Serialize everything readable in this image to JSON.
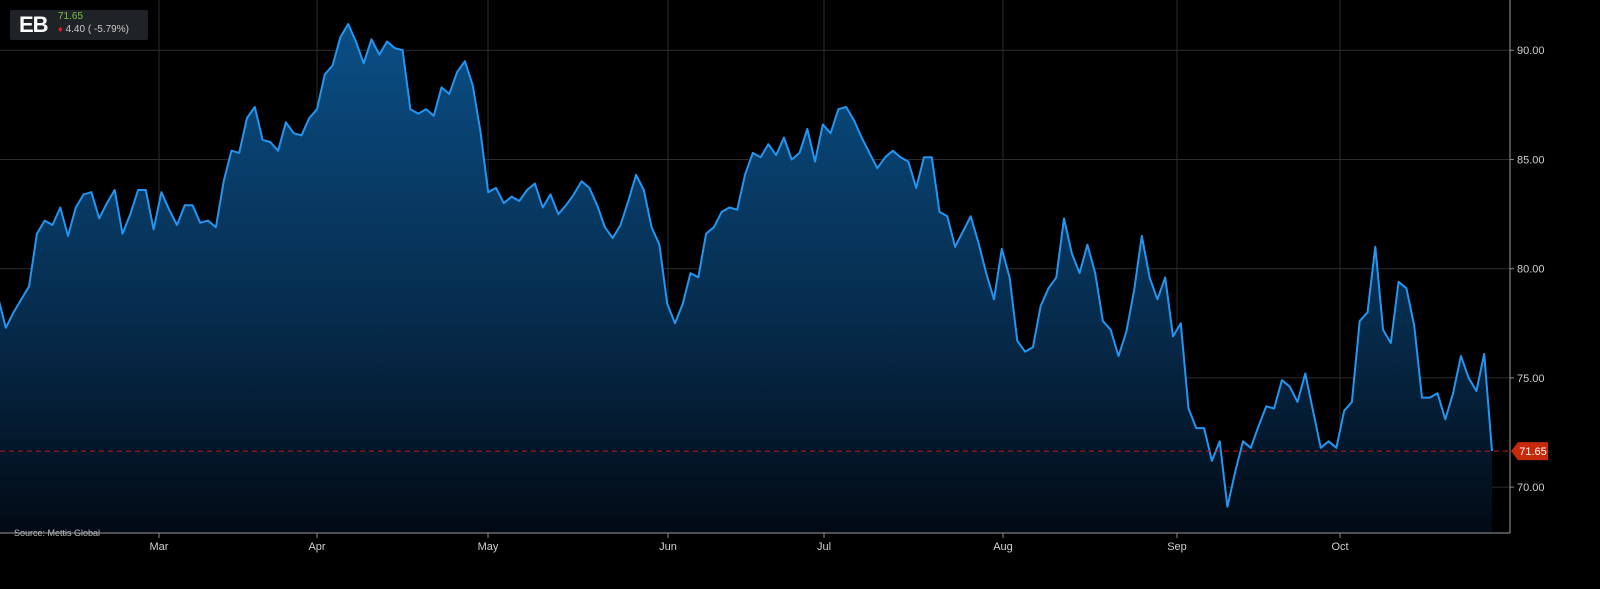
{
  "ticker": {
    "symbol": "EB",
    "price": "71.65",
    "change": "4.40 ( -5.79%)"
  },
  "source": "Source: Mettis Global",
  "colors": {
    "line": "#2196f3",
    "area_top": "#0a4f86",
    "last_price_marker": "#c62a0a",
    "last_price_line": "#b71c1c",
    "price_up_text": "#7cc242"
  },
  "chart_data": {
    "type": "area",
    "title": "",
    "xlabel": "",
    "ylabel": "",
    "ylim": [
      67.9,
      92.3
    ],
    "y_ticks": [
      90,
      85,
      80,
      75,
      70
    ],
    "y_tick_labels": [
      "90.00",
      "85.00",
      "80.00",
      "75.00",
      "70.00"
    ],
    "x_tick_labels": [
      "Mar",
      "Apr",
      "May",
      "Jun",
      "Jul",
      "Aug",
      "Sep",
      "Oct"
    ],
    "last_price": 71.65,
    "last_price_label": "71.65",
    "grid": true,
    "legend": "none",
    "series": [
      {
        "values": [
          78.7,
          77.3,
          78.0,
          78.6,
          79.2,
          81.6,
          82.2,
          82.0,
          82.8,
          81.5,
          82.8,
          83.4,
          83.5,
          82.3,
          83.0,
          83.6,
          81.6,
          82.5,
          83.6,
          83.6,
          81.8,
          83.5,
          82.7,
          82.0,
          82.9,
          82.9,
          82.1,
          82.2,
          81.9,
          84.0,
          85.4,
          85.3,
          86.9,
          87.4,
          85.9,
          85.8,
          85.4,
          86.7,
          86.2,
          86.1,
          86.9,
          87.3,
          88.9,
          89.3,
          90.6,
          91.2,
          90.4,
          89.4,
          90.5,
          89.8,
          90.4,
          90.1,
          90.0,
          87.3,
          87.1,
          87.3,
          87.0,
          88.3,
          88.0,
          89.0,
          89.5,
          88.4,
          86.3,
          83.5,
          83.7,
          83.0,
          83.3,
          83.1,
          83.6,
          83.9,
          82.8,
          83.4,
          82.5,
          82.9,
          83.4,
          84.0,
          83.7,
          82.9,
          81.9,
          81.4,
          82.0,
          83.1,
          84.3,
          83.6,
          81.9,
          81.1,
          78.4,
          77.5,
          78.4,
          79.8,
          79.6,
          81.6,
          81.9,
          82.6,
          82.8,
          82.7,
          84.3,
          85.3,
          85.1,
          85.7,
          85.2,
          86.0,
          85.0,
          85.3,
          86.4,
          84.9,
          86.6,
          86.2,
          87.3,
          87.4,
          86.8,
          86.0,
          85.3,
          84.6,
          85.1,
          85.4,
          85.1,
          84.9,
          83.7,
          85.1,
          85.1,
          82.6,
          82.4,
          81.0,
          81.7,
          82.4,
          81.2,
          79.8,
          78.6,
          80.9,
          79.6,
          76.7,
          76.2,
          76.4,
          78.3,
          79.1,
          79.6,
          82.3,
          80.7,
          79.8,
          81.1,
          79.8,
          77.6,
          77.2,
          76.0,
          77.1,
          79.0,
          81.5,
          79.6,
          78.6,
          79.6,
          76.9,
          77.5,
          73.6,
          72.7,
          72.7,
          71.2,
          72.1,
          69.1,
          70.7,
          72.1,
          71.8,
          72.8,
          73.7,
          73.6,
          74.9,
          74.6,
          73.9,
          75.2,
          73.5,
          71.8,
          72.1,
          71.8,
          73.5,
          73.9,
          77.6,
          78.0,
          81.0,
          77.2,
          76.6,
          79.4,
          79.1,
          77.4,
          74.1,
          74.1,
          74.3,
          73.1,
          74.3,
          76.0,
          75.0,
          74.4,
          76.1,
          71.65
        ]
      }
    ]
  }
}
